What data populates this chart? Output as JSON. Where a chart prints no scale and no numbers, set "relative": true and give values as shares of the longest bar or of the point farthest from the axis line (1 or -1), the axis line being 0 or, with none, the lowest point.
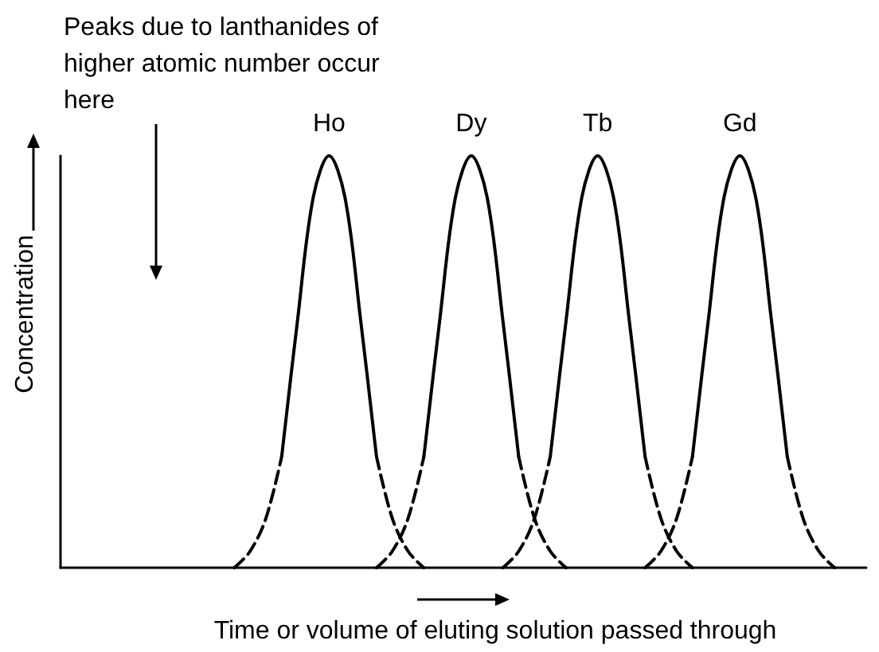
{
  "chart_data": {
    "type": "line",
    "relative": true,
    "xlabel": "Time or volume of eluting solution passed through",
    "ylabel": "Concentration",
    "annotations": [
      "Peaks due to lanthanides of higher atomic number occur here"
    ],
    "grid": false,
    "legend": false,
    "marker": "none",
    "categories": [
      null,
      null,
      null,
      null,
      null,
      null,
      null,
      null,
      null,
      null,
      null,
      null,
      null,
      null,
      null,
      null,
      null,
      null,
      null,
      null,
      null,
      null,
      null,
      null,
      null,
      null,
      null,
      null,
      null,
      null,
      null,
      null,
      null,
      null,
      null,
      null,
      null,
      null,
      null,
      null,
      null,
      null,
      null,
      null,
      null,
      null,
      null,
      null,
      null,
      null,
      null,
      null
    ],
    "series": [
      {
        "color": "#000000",
        "line_style": "dashed",
        "values": [
          null,
          null,
          null,
          null,
          null,
          null,
          null,
          null,
          null,
          null,
          null,
          0,
          0.04,
          0.12,
          0.27,
          null,
          null,
          null,
          null,
          null,
          null,
          null,
          null,
          null,
          null,
          null,
          null,
          null,
          null,
          null,
          null,
          null,
          null,
          null,
          null,
          null,
          null,
          null,
          null,
          null,
          null,
          null,
          null,
          null,
          null,
          null,
          null,
          null,
          null,
          null,
          null,
          null
        ]
      },
      {
        "name": "Ho",
        "color": "#000000",
        "line_style": "solid",
        "values": [
          null,
          null,
          null,
          null,
          null,
          null,
          null,
          null,
          null,
          null,
          null,
          null,
          null,
          null,
          0.27,
          0.6,
          0.9,
          1,
          0.9,
          0.6,
          0.27,
          null,
          null,
          null,
          null,
          null,
          null,
          null,
          null,
          null,
          null,
          null,
          null,
          null,
          null,
          null,
          null,
          null,
          null,
          null,
          null,
          null,
          null,
          null,
          null,
          null,
          null,
          null,
          null,
          null,
          null,
          null
        ]
      },
      {
        "color": "#000000",
        "line_style": "dashed",
        "values": [
          null,
          null,
          null,
          null,
          null,
          null,
          null,
          null,
          null,
          null,
          null,
          null,
          null,
          null,
          null,
          null,
          null,
          null,
          null,
          null,
          0.27,
          0.12,
          0.04,
          0,
          null,
          null,
          null,
          null,
          null,
          null,
          null,
          null,
          null,
          null,
          null,
          null,
          null,
          null,
          null,
          null,
          null,
          null,
          null,
          null,
          null,
          null,
          null,
          null,
          null,
          null,
          null,
          null
        ]
      },
      {
        "color": "#000000",
        "line_style": "dashed",
        "values": [
          null,
          null,
          null,
          null,
          null,
          null,
          null,
          null,
          null,
          null,
          null,
          null,
          null,
          null,
          null,
          null,
          null,
          null,
          null,
          null,
          0,
          0.04,
          0.12,
          0.27,
          null,
          null,
          null,
          null,
          null,
          null,
          null,
          null,
          null,
          null,
          null,
          null,
          null,
          null,
          null,
          null,
          null,
          null,
          null,
          null,
          null,
          null,
          null,
          null,
          null,
          null,
          null,
          null
        ]
      },
      {
        "name": "Dy",
        "color": "#000000",
        "line_style": "solid",
        "values": [
          null,
          null,
          null,
          null,
          null,
          null,
          null,
          null,
          null,
          null,
          null,
          null,
          null,
          null,
          null,
          null,
          null,
          null,
          null,
          null,
          null,
          null,
          null,
          0.27,
          0.6,
          0.9,
          1,
          0.9,
          0.6,
          0.27,
          null,
          null,
          null,
          null,
          null,
          null,
          null,
          null,
          null,
          null,
          null,
          null,
          null,
          null,
          null,
          null,
          null,
          null,
          null,
          null,
          null,
          null
        ]
      },
      {
        "color": "#000000",
        "line_style": "dashed",
        "values": [
          null,
          null,
          null,
          null,
          null,
          null,
          null,
          null,
          null,
          null,
          null,
          null,
          null,
          null,
          null,
          null,
          null,
          null,
          null,
          null,
          null,
          null,
          null,
          null,
          null,
          null,
          null,
          null,
          null,
          0.27,
          0.12,
          0.04,
          0,
          null,
          null,
          null,
          null,
          null,
          null,
          null,
          null,
          null,
          null,
          null,
          null,
          null,
          null,
          null,
          null,
          null,
          null,
          null
        ]
      },
      {
        "color": "#000000",
        "line_style": "dashed",
        "values": [
          null,
          null,
          null,
          null,
          null,
          null,
          null,
          null,
          null,
          null,
          null,
          null,
          null,
          null,
          null,
          null,
          null,
          null,
          null,
          null,
          null,
          null,
          null,
          null,
          null,
          null,
          null,
          null,
          0,
          0.04,
          0.12,
          0.27,
          null,
          null,
          null,
          null,
          null,
          null,
          null,
          null,
          null,
          null,
          null,
          null,
          null,
          null,
          null,
          null,
          null,
          null,
          null,
          null
        ]
      },
      {
        "name": "Tb",
        "color": "#000000",
        "line_style": "solid",
        "values": [
          null,
          null,
          null,
          null,
          null,
          null,
          null,
          null,
          null,
          null,
          null,
          null,
          null,
          null,
          null,
          null,
          null,
          null,
          null,
          null,
          null,
          null,
          null,
          null,
          null,
          null,
          null,
          null,
          null,
          null,
          null,
          0.27,
          0.6,
          0.9,
          1,
          0.9,
          0.6,
          0.27,
          null,
          null,
          null,
          null,
          null,
          null,
          null,
          null,
          null,
          null,
          null,
          null,
          null,
          null
        ]
      },
      {
        "color": "#000000",
        "line_style": "dashed",
        "values": [
          null,
          null,
          null,
          null,
          null,
          null,
          null,
          null,
          null,
          null,
          null,
          null,
          null,
          null,
          null,
          null,
          null,
          null,
          null,
          null,
          null,
          null,
          null,
          null,
          null,
          null,
          null,
          null,
          null,
          null,
          null,
          null,
          null,
          null,
          null,
          null,
          null,
          0.27,
          0.12,
          0.04,
          0,
          null,
          null,
          null,
          null,
          null,
          null,
          null,
          null,
          null,
          null,
          null
        ]
      },
      {
        "color": "#000000",
        "line_style": "dashed",
        "values": [
          null,
          null,
          null,
          null,
          null,
          null,
          null,
          null,
          null,
          null,
          null,
          null,
          null,
          null,
          null,
          null,
          null,
          null,
          null,
          null,
          null,
          null,
          null,
          null,
          null,
          null,
          null,
          null,
          null,
          null,
          null,
          null,
          null,
          null,
          null,
          null,
          null,
          0,
          0.04,
          0.12,
          0.27,
          null,
          null,
          null,
          null,
          null,
          null,
          null,
          null,
          null,
          null,
          null
        ]
      },
      {
        "name": "Gd",
        "color": "#000000",
        "line_style": "solid",
        "values": [
          null,
          null,
          null,
          null,
          null,
          null,
          null,
          null,
          null,
          null,
          null,
          null,
          null,
          null,
          null,
          null,
          null,
          null,
          null,
          null,
          null,
          null,
          null,
          null,
          null,
          null,
          null,
          null,
          null,
          null,
          null,
          null,
          null,
          null,
          null,
          null,
          null,
          null,
          null,
          null,
          0.27,
          0.6,
          0.9,
          1,
          0.9,
          0.6,
          0.27,
          null,
          null,
          null,
          null,
          null
        ]
      },
      {
        "color": "#000000",
        "line_style": "dashed",
        "values": [
          null,
          null,
          null,
          null,
          null,
          null,
          null,
          null,
          null,
          null,
          null,
          null,
          null,
          null,
          null,
          null,
          null,
          null,
          null,
          null,
          null,
          null,
          null,
          null,
          null,
          null,
          null,
          null,
          null,
          null,
          null,
          null,
          null,
          null,
          null,
          null,
          null,
          null,
          null,
          null,
          null,
          null,
          null,
          null,
          null,
          null,
          0.27,
          0.12,
          0.04,
          0,
          null,
          null
        ]
      }
    ]
  }
}
